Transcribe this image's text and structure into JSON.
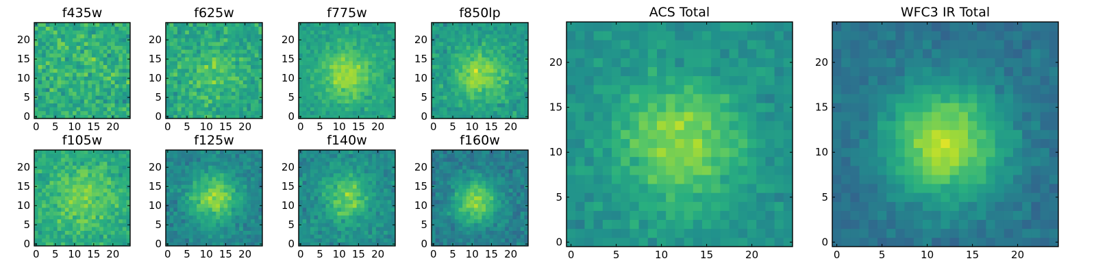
{
  "chart_data": [
    {
      "type": "heatmap",
      "title": "f435w",
      "xticks": [
        0,
        5,
        10,
        15,
        20
      ],
      "yticks": [
        0,
        5,
        10,
        15,
        20
      ],
      "xlim": [
        0,
        24
      ],
      "ylim": [
        0,
        24
      ],
      "colormap": "viridis",
      "spatial_profile": {
        "peak_x": 12,
        "peak_y": 12,
        "sigma": 6,
        "amplitude": 0.05,
        "base": 0.62,
        "noise": 0.22,
        "seed": 11
      }
    },
    {
      "type": "heatmap",
      "title": "f625w",
      "xticks": [
        0,
        5,
        10,
        15,
        20
      ],
      "yticks": [
        0,
        5,
        10,
        15,
        20
      ],
      "xlim": [
        0,
        24
      ],
      "ylim": [
        0,
        24
      ],
      "colormap": "viridis",
      "spatial_profile": {
        "peak_x": 12,
        "peak_y": 12,
        "sigma": 5,
        "amplitude": 0.12,
        "base": 0.6,
        "noise": 0.2,
        "seed": 23
      }
    },
    {
      "type": "heatmap",
      "title": "f775w",
      "xticks": [
        0,
        5,
        10,
        15,
        20
      ],
      "yticks": [
        0,
        5,
        10,
        15,
        20
      ],
      "xlim": [
        0,
        24
      ],
      "ylim": [
        0,
        24
      ],
      "colormap": "viridis",
      "spatial_profile": {
        "peak_x": 12,
        "peak_y": 11,
        "sigma": 4.5,
        "amplitude": 0.28,
        "base": 0.58,
        "noise": 0.13,
        "seed": 37
      }
    },
    {
      "type": "heatmap",
      "title": "f850lp",
      "xticks": [
        0,
        5,
        10,
        15,
        20
      ],
      "yticks": [
        0,
        5,
        10,
        15,
        20
      ],
      "xlim": [
        0,
        24
      ],
      "ylim": [
        0,
        24
      ],
      "colormap": "viridis",
      "spatial_profile": {
        "peak_x": 12,
        "peak_y": 11,
        "sigma": 4.5,
        "amplitude": 0.3,
        "base": 0.55,
        "noise": 0.16,
        "seed": 41
      }
    },
    {
      "type": "heatmap",
      "title": "f105w",
      "xticks": [
        0,
        5,
        10,
        15,
        20
      ],
      "yticks": [
        0,
        5,
        10,
        15,
        20
      ],
      "xlim": [
        0,
        24
      ],
      "ylim": [
        0,
        24
      ],
      "colormap": "viridis",
      "spatial_profile": {
        "peak_x": 12,
        "peak_y": 12,
        "sigma": 6,
        "amplitude": 0.18,
        "base": 0.6,
        "noise": 0.16,
        "seed": 53
      }
    },
    {
      "type": "heatmap",
      "title": "f125w",
      "xticks": [
        0,
        5,
        10,
        15,
        20
      ],
      "yticks": [
        0,
        5,
        10,
        15,
        20
      ],
      "xlim": [
        0,
        24
      ],
      "ylim": [
        0,
        24
      ],
      "colormap": "viridis",
      "spatial_profile": {
        "peak_x": 12,
        "peak_y": 12,
        "sigma": 4.5,
        "amplitude": 0.38,
        "base": 0.45,
        "noise": 0.14,
        "seed": 67
      }
    },
    {
      "type": "heatmap",
      "title": "f140w",
      "xticks": [
        0,
        5,
        10,
        15,
        20
      ],
      "yticks": [
        0,
        5,
        10,
        15,
        20
      ],
      "xlim": [
        0,
        24
      ],
      "ylim": [
        0,
        24
      ],
      "colormap": "viridis",
      "spatial_profile": {
        "peak_x": 12,
        "peak_y": 12,
        "sigma": 4.5,
        "amplitude": 0.3,
        "base": 0.48,
        "noise": 0.15,
        "seed": 71
      }
    },
    {
      "type": "heatmap",
      "title": "f160w",
      "xticks": [
        0,
        5,
        10,
        15,
        20
      ],
      "yticks": [
        0,
        5,
        10,
        15,
        20
      ],
      "xlim": [
        0,
        24
      ],
      "ylim": [
        0,
        24
      ],
      "colormap": "viridis",
      "spatial_profile": {
        "peak_x": 11,
        "peak_y": 11,
        "sigma": 4,
        "amplitude": 0.42,
        "base": 0.42,
        "noise": 0.14,
        "seed": 83
      }
    },
    {
      "type": "heatmap",
      "title": "ACS Total",
      "xticks": [
        0,
        5,
        10,
        15,
        20
      ],
      "yticks": [
        0,
        5,
        10,
        15,
        20
      ],
      "xlim": [
        0,
        24
      ],
      "ylim": [
        0,
        24
      ],
      "colormap": "viridis",
      "spatial_profile": {
        "peak_x": 12,
        "peak_y": 11,
        "sigma": 5,
        "amplitude": 0.33,
        "base": 0.5,
        "noise": 0.12,
        "seed": 97
      }
    },
    {
      "type": "heatmap",
      "title": "WFC3 IR Total",
      "xticks": [
        0,
        5,
        10,
        15,
        20
      ],
      "yticks": [
        0,
        5,
        10,
        15,
        20
      ],
      "xlim": [
        0,
        24
      ],
      "ylim": [
        0,
        24
      ],
      "colormap": "viridis",
      "spatial_profile": {
        "peak_x": 12,
        "peak_y": 11,
        "sigma": 4.5,
        "amplitude": 0.5,
        "base": 0.38,
        "noise": 0.1,
        "seed": 101
      }
    }
  ]
}
